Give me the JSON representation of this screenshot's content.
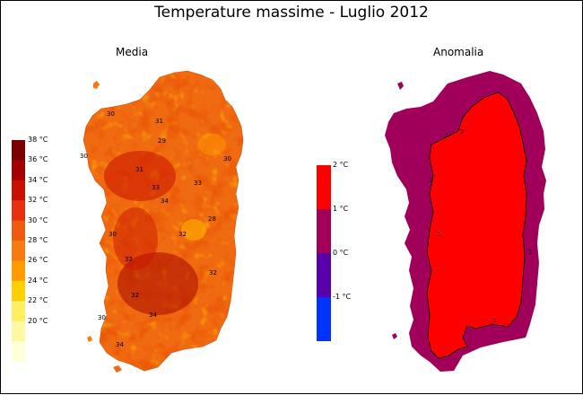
{
  "title": "Temperature massime - Luglio 2012",
  "panels": {
    "left": {
      "subtitle": "Media"
    },
    "right": {
      "subtitle": "Anomalia"
    }
  },
  "legend_left": {
    "labels": [
      "38 °C",
      "36 °C",
      "34 °C",
      "32 °C",
      "30 °C",
      "28 °C",
      "26 °C",
      "24 °C",
      "22 °C",
      "20 °C"
    ],
    "colors": [
      "#7a0000",
      "#a50000",
      "#cc1000",
      "#e83010",
      "#f05a10",
      "#f57a10",
      "#ff9a00",
      "#ffd000",
      "#ffee60",
      "#fff8a0",
      "#ffffd8"
    ]
  },
  "legend_right": {
    "labels": [
      "2 °C",
      "1 °C",
      "0 °C",
      "-1 °C"
    ],
    "colors": [
      "#ff0000",
      "#a0005a",
      "#5a00aa",
      "#0033ff"
    ]
  },
  "contour_labels": {
    "left": [
      "28",
      "29",
      "30",
      "30",
      "30",
      "30",
      "30",
      "31",
      "31",
      "32",
      "32",
      "32",
      "32",
      "33",
      "33",
      "34",
      "34",
      "34"
    ],
    "right": [
      "1",
      "1",
      "1",
      "1",
      "2",
      "2"
    ]
  },
  "colors": {
    "map_base": "#f06a10",
    "map_hot": "#cc1000",
    "map_dark": "#a50000",
    "anomaly_outer": "#a0005a",
    "anomaly_inner": "#ff0000"
  }
}
